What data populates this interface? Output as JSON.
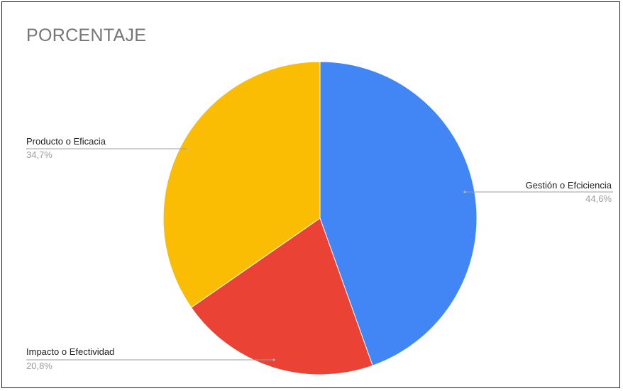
{
  "chart_data": {
    "type": "pie",
    "title": "PORCENTAJE",
    "slices": [
      {
        "label": "Gestión o Efciciencia",
        "percent_label": "44,6%",
        "value": 44.6,
        "color": "#4285f4"
      },
      {
        "label": "Impacto o Efectividad",
        "percent_label": "20,8%",
        "value": 20.8,
        "color": "#ea4335"
      },
      {
        "label": "Producto o Eficacia",
        "percent_label": "34,7%",
        "value": 34.7,
        "color": "#fbbc04"
      }
    ],
    "start_angle_deg": 0,
    "direction": "clockwise",
    "legend": "none"
  }
}
